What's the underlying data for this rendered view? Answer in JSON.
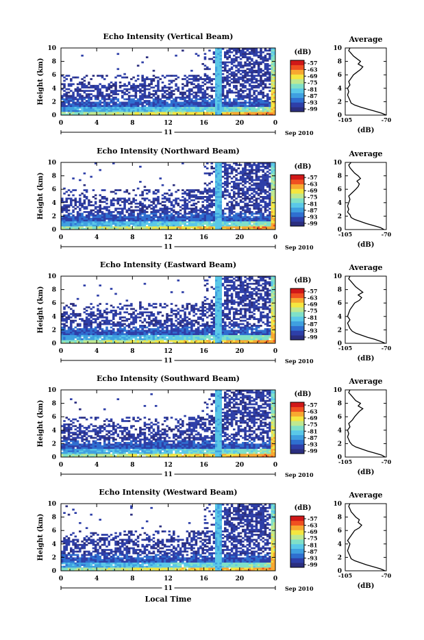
{
  "chart_data": {
    "type": "heatmap",
    "xlabel": "Local Time",
    "date_suffix": "Sep 2010",
    "day_label": "11",
    "x_ticks": [
      "0",
      "4",
      "8",
      "12",
      "16",
      "20",
      "0"
    ],
    "xlim": [
      0,
      24
    ],
    "ylabel": "Height (km)",
    "y_ticks": [
      "0",
      "2",
      "4",
      "6",
      "8",
      "10"
    ],
    "ylim": [
      0,
      10
    ],
    "colorbar": {
      "unit": "(dB)",
      "ticks": [
        "-57",
        "-63",
        "-69",
        "-75",
        "-81",
        "-87",
        "-93",
        "-99"
      ],
      "colors": [
        "#2b2e7f",
        "#2e3fa8",
        "#2f6fd0",
        "#3fa0e0",
        "#5ac8e8",
        "#7fe0c8",
        "#bfe890",
        "#f5e640",
        "#f8a830",
        "#f05020",
        "#d01818"
      ]
    },
    "panels": [
      {
        "title": "Echo Intensity (Vertical Beam)",
        "average": {
          "title": "Average",
          "xlabel": "(dB)",
          "x_ticks": [
            "-105",
            "-70"
          ],
          "xlim": [
            -105,
            -70
          ],
          "y_ticks": [
            "0",
            "2",
            "4",
            "6",
            "8",
            "10"
          ],
          "ylim": [
            0,
            10
          ],
          "profile": [
            [
              0,
              -70
            ],
            [
              0.3,
              -74
            ],
            [
              0.6,
              -80
            ],
            [
              0.9,
              -86
            ],
            [
              1.2,
              -92
            ],
            [
              1.5,
              -97
            ],
            [
              1.8,
              -100
            ],
            [
              2.2,
              -101
            ],
            [
              2.6,
              -102
            ],
            [
              3.0,
              -103
            ],
            [
              3.5,
              -102
            ],
            [
              4.0,
              -103
            ],
            [
              4.5,
              -101
            ],
            [
              5.0,
              -102
            ],
            [
              5.5,
              -100
            ],
            [
              6.0,
              -98
            ],
            [
              6.4,
              -95
            ],
            [
              6.8,
              -92
            ],
            [
              7.2,
              -90
            ],
            [
              7.6,
              -94
            ],
            [
              8.0,
              -92
            ],
            [
              8.4,
              -95
            ],
            [
              8.8,
              -98
            ],
            [
              9.2,
              -100
            ],
            [
              9.6,
              -102
            ],
            [
              10,
              -101
            ]
          ]
        }
      },
      {
        "title": "Echo Intensity (Northward Beam)",
        "average": {
          "title": "Average",
          "xlabel": "(dB)",
          "x_ticks": [
            "-105",
            "-70"
          ],
          "xlim": [
            -105,
            -70
          ],
          "y_ticks": [
            "0",
            "2",
            "4",
            "6",
            "8",
            "10"
          ],
          "ylim": [
            0,
            10
          ],
          "profile": [
            [
              0,
              -72
            ],
            [
              0.3,
              -75
            ],
            [
              0.6,
              -81
            ],
            [
              0.9,
              -87
            ],
            [
              1.2,
              -92
            ],
            [
              1.5,
              -97
            ],
            [
              1.8,
              -100
            ],
            [
              2.2,
              -101
            ],
            [
              2.6,
              -103
            ],
            [
              3.0,
              -102
            ],
            [
              3.5,
              -103
            ],
            [
              4.0,
              -102
            ],
            [
              4.5,
              -101
            ],
            [
              5.0,
              -102
            ],
            [
              5.5,
              -99
            ],
            [
              6.0,
              -96
            ],
            [
              6.4,
              -94
            ],
            [
              6.8,
              -93
            ],
            [
              7.2,
              -95
            ],
            [
              7.6,
              -92
            ],
            [
              8.0,
              -94
            ],
            [
              8.4,
              -97
            ],
            [
              8.8,
              -99
            ],
            [
              9.2,
              -101
            ],
            [
              9.6,
              -102
            ],
            [
              10,
              -100
            ]
          ]
        }
      },
      {
        "title": "Echo Intensity (Eastward Beam)",
        "average": {
          "title": "Average",
          "xlabel": "(dB)",
          "x_ticks": [
            "-105",
            "-70"
          ],
          "xlim": [
            -105,
            -70
          ],
          "y_ticks": [
            "0",
            "2",
            "4",
            "6",
            "8",
            "10"
          ],
          "ylim": [
            0,
            10
          ],
          "profile": [
            [
              0,
              -71
            ],
            [
              0.3,
              -75
            ],
            [
              0.6,
              -80
            ],
            [
              0.9,
              -86
            ],
            [
              1.2,
              -91
            ],
            [
              1.5,
              -96
            ],
            [
              1.8,
              -99
            ],
            [
              2.2,
              -101
            ],
            [
              2.6,
              -102
            ],
            [
              3.0,
              -103
            ],
            [
              3.5,
              -101
            ],
            [
              4.0,
              -103
            ],
            [
              4.5,
              -102
            ],
            [
              5.0,
              -101
            ],
            [
              5.5,
              -99
            ],
            [
              6.0,
              -97
            ],
            [
              6.4,
              -93
            ],
            [
              6.8,
              -91
            ],
            [
              7.2,
              -94
            ],
            [
              7.6,
              -90
            ],
            [
              8.0,
              -93
            ],
            [
              8.4,
              -96
            ],
            [
              8.8,
              -98
            ],
            [
              9.2,
              -100
            ],
            [
              9.6,
              -102
            ],
            [
              10,
              -101
            ]
          ]
        }
      },
      {
        "title": "Echo Intensity (Southward Beam)",
        "average": {
          "title": "Average",
          "xlabel": "(dB)",
          "x_ticks": [
            "-105",
            "-70"
          ],
          "xlim": [
            -105,
            -70
          ],
          "y_ticks": [
            "0",
            "2",
            "4",
            "6",
            "8",
            "10"
          ],
          "ylim": [
            0,
            10
          ],
          "profile": [
            [
              0,
              -71
            ],
            [
              0.3,
              -74
            ],
            [
              0.6,
              -80
            ],
            [
              0.9,
              -86
            ],
            [
              1.2,
              -91
            ],
            [
              1.5,
              -96
            ],
            [
              1.8,
              -99
            ],
            [
              2.2,
              -101
            ],
            [
              2.6,
              -102
            ],
            [
              3.0,
              -103
            ],
            [
              3.5,
              -102
            ],
            [
              4.0,
              -103
            ],
            [
              4.5,
              -101
            ],
            [
              5.0,
              -102
            ],
            [
              5.5,
              -99
            ],
            [
              6.0,
              -97
            ],
            [
              6.4,
              -95
            ],
            [
              6.8,
              -93
            ],
            [
              7.2,
              -90
            ],
            [
              7.6,
              -94
            ],
            [
              8.0,
              -92
            ],
            [
              8.4,
              -96
            ],
            [
              8.8,
              -98
            ],
            [
              9.2,
              -100
            ],
            [
              9.6,
              -102
            ],
            [
              10,
              -101
            ]
          ]
        }
      },
      {
        "title": "Echo Intensity (Westward Beam)",
        "average": {
          "title": "Average",
          "xlabel": "(dB)",
          "x_ticks": [
            "-105",
            "-70"
          ],
          "xlim": [
            -105,
            -70
          ],
          "y_ticks": [
            "0",
            "2",
            "4",
            "6",
            "8",
            "10"
          ],
          "ylim": [
            0,
            10
          ],
          "profile": [
            [
              0,
              -71
            ],
            [
              0.3,
              -75
            ],
            [
              0.6,
              -81
            ],
            [
              0.9,
              -87
            ],
            [
              1.2,
              -92
            ],
            [
              1.5,
              -97
            ],
            [
              1.8,
              -100
            ],
            [
              2.2,
              -101
            ],
            [
              2.6,
              -102
            ],
            [
              3.0,
              -103
            ],
            [
              3.5,
              -102
            ],
            [
              4.0,
              -101
            ],
            [
              4.5,
              -103
            ],
            [
              5.0,
              -101
            ],
            [
              5.5,
              -99
            ],
            [
              6.0,
              -97
            ],
            [
              6.4,
              -93
            ],
            [
              6.8,
              -91
            ],
            [
              7.2,
              -94
            ],
            [
              7.6,
              -93
            ],
            [
              8.0,
              -96
            ],
            [
              8.4,
              -98
            ],
            [
              8.8,
              -100
            ],
            [
              9.2,
              -101
            ],
            [
              9.6,
              -102
            ],
            [
              10,
              -101
            ]
          ]
        }
      }
    ]
  }
}
